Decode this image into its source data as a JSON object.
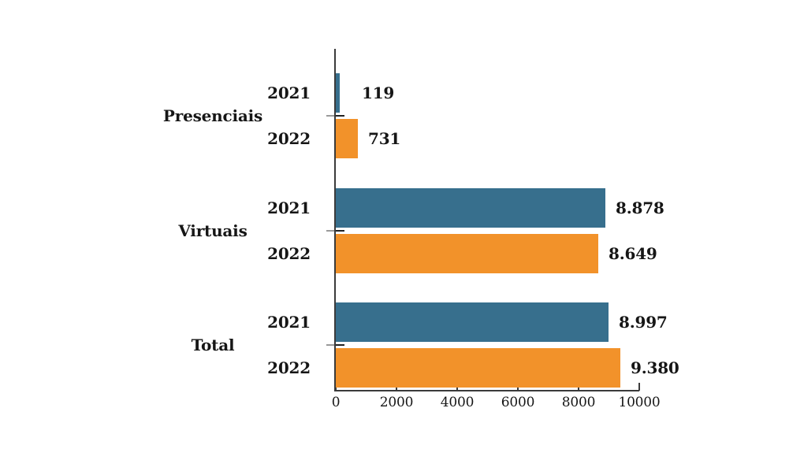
{
  "chart": {
    "title": "",
    "background": "#ffffff"
  },
  "chart_data": {
    "type": "bar",
    "orientation": "horizontal",
    "categories": [
      "Presenciais",
      "Virtuais",
      "Total"
    ],
    "series": [
      {
        "name": "2021",
        "color": "#376F8D",
        "values": [
          119,
          8878,
          8997
        ],
        "labels": [
          "119",
          "8.878",
          "8.997"
        ]
      },
      {
        "name": "2022",
        "color": "#F2922A",
        "values": [
          731,
          8649,
          9380
        ],
        "labels": [
          "731",
          "8.649",
          "9.380"
        ]
      }
    ],
    "xlim": [
      0,
      10000
    ],
    "x_ticks": [
      {
        "label": "0",
        "value": 0
      },
      {
        "label": "2000",
        "value": 2000
      },
      {
        "label": "4000",
        "value": 4000
      },
      {
        "label": "6000",
        "value": 6000
      },
      {
        "label": "8000",
        "value": 8000
      },
      {
        "label": "10000",
        "value": 10000
      }
    ],
    "grid": false,
    "legend": "none",
    "value_label_position": "outside-end",
    "axis_color": "#3b3b3b",
    "text_color": "#161616",
    "group_tick_color": "#9a9a9a"
  }
}
